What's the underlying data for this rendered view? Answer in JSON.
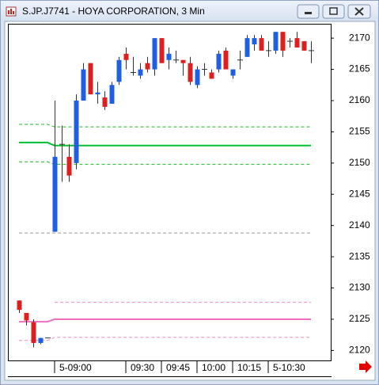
{
  "chart_data": {
    "type": "candlestick",
    "title": "S.JP.J7741 - HOYA CORPORATION, 3 Min",
    "categories": [
      null,
      null,
      null,
      null,
      null,
      "5-09:00",
      null,
      null,
      null,
      null,
      null,
      null,
      null,
      null,
      null,
      "09:30",
      null,
      null,
      null,
      null,
      "09:45",
      null,
      null,
      null,
      null,
      "10:00",
      null,
      null,
      null,
      null,
      "10:15",
      null,
      null,
      null,
      null,
      "5-10:30",
      null,
      null,
      null,
      null,
      null,
      null
    ],
    "open": [
      2128,
      2126,
      2124.5,
      2121.2,
      2122,
      2139,
      2153,
      2151,
      2150,
      2160,
      2166,
      2161,
      2160.5,
      2159.5,
      2163,
      2167.5,
      2164.5,
      2164,
      2166,
      2165,
      2170,
      2166.5,
      2166.5,
      2166.5,
      2166,
      2162.5,
      2165,
      2164.5,
      2165,
      2168,
      2164,
      2166.5,
      2167,
      2169,
      2170,
      2168,
      2168,
      2171,
      2169.5,
      2170,
      2169.5,
      2168
    ],
    "high": [
      2128,
      2126,
      2125,
      2122,
      2122,
      2160,
      2156,
      2153,
      2161,
      2166,
      2166,
      2163,
      2161.5,
      2163,
      2167,
      2168.5,
      2167,
      2166,
      2167,
      2170,
      2170,
      2168.5,
      2168,
      2166.5,
      2167,
      2165.5,
      2166,
      2165,
      2168,
      2168.5,
      2165,
      2168,
      2170.5,
      2170.5,
      2170.5,
      2169.5,
      2171,
      2171,
      2170,
      2171,
      2169.5,
      2169.5
    ],
    "low": [
      2126,
      2124,
      2120.5,
      2121,
      2122,
      2139,
      2147,
      2147,
      2149,
      2160,
      2161,
      2159.5,
      2158.5,
      2159.5,
      2162.5,
      2165,
      2164,
      2163.5,
      2164.5,
      2164,
      2166,
      2165,
      2166,
      2164,
      2162.5,
      2162,
      2164,
      2163.5,
      2164.5,
      2165,
      2163.5,
      2165,
      2167,
      2168,
      2168,
      2167,
      2167.5,
      2167,
      2168.5,
      2168.5,
      2168,
      2166
    ],
    "close": [
      2126.5,
      2124.8,
      2121.2,
      2122,
      2122,
      2151,
      2153,
      2148,
      2160,
      2165,
      2161,
      2161.3,
      2159,
      2162.5,
      2166.5,
      2166.5,
      2164.5,
      2165,
      2165,
      2170,
      2166,
      2167.5,
      2166.5,
      2166,
      2163,
      2165,
      2165,
      2163.5,
      2167.5,
      2165,
      2165,
      2166.5,
      2170,
      2170,
      2168,
      2168,
      2171,
      2168,
      2169.5,
      2168.5,
      2168,
      2168
    ],
    "up_color": "#1f5fe0",
    "down_color": "#dc1f1f",
    "wick_color": "#333333",
    "overlays": [
      {
        "color": "#22b822",
        "dashed": true,
        "values": [
          2156.2,
          2156.2,
          2156.2,
          2156.2,
          2156.2,
          2155.8,
          2155.8,
          2155.8,
          2155.8,
          2155.8,
          2155.8,
          2155.8,
          2155.8,
          2155.8,
          2155.8,
          2155.8,
          2155.8,
          2155.8,
          2155.8,
          2155.8,
          2155.8,
          2155.8,
          2155.8,
          2155.8,
          2155.8,
          2155.8,
          2155.8,
          2155.8,
          2155.8,
          2155.8,
          2155.8,
          2155.8,
          2155.8,
          2155.8,
          2155.8,
          2155.8,
          2155.8,
          2155.8,
          2155.8,
          2155.8,
          2155.8,
          2155.8
        ]
      },
      {
        "color": "#00c030",
        "dashed": false,
        "values": [
          2153.3,
          2153.3,
          2153.3,
          2153.3,
          2153.3,
          2152.8,
          2152.8,
          2152.8,
          2152.8,
          2152.8,
          2152.8,
          2152.8,
          2152.8,
          2152.8,
          2152.8,
          2152.8,
          2152.8,
          2152.8,
          2152.8,
          2152.8,
          2152.8,
          2152.8,
          2152.8,
          2152.8,
          2152.8,
          2152.8,
          2152.8,
          2152.8,
          2152.8,
          2152.8,
          2152.8,
          2152.8,
          2152.8,
          2152.8,
          2152.8,
          2152.8,
          2152.8,
          2152.8,
          2152.8,
          2152.8,
          2152.8,
          2152.8
        ]
      },
      {
        "color": "#22b822",
        "dashed": true,
        "values": [
          2150.2,
          2150.2,
          2150.2,
          2150.2,
          2150.2,
          2149.8,
          2149.8,
          2149.8,
          2149.8,
          2149.8,
          2149.8,
          2149.8,
          2149.8,
          2149.8,
          2149.8,
          2149.8,
          2149.8,
          2149.8,
          2149.8,
          2149.8,
          2149.8,
          2149.8,
          2149.8,
          2149.8,
          2149.8,
          2149.8,
          2149.8,
          2149.8,
          2149.8,
          2149.8,
          2149.8,
          2149.8,
          2149.8,
          2149.8,
          2149.8,
          2149.8,
          2149.8,
          2149.8,
          2149.8,
          2149.8,
          2149.8,
          2149.8
        ]
      },
      {
        "color": "#999999",
        "dashed": true,
        "values": [
          2138.8,
          2138.8,
          2138.8,
          2138.8,
          2138.8,
          2138.8,
          2138.8,
          2138.8,
          2138.8,
          2138.8,
          2138.8,
          2138.8,
          2138.8,
          2138.8,
          2138.8,
          2138.8,
          2138.8,
          2138.8,
          2138.8,
          2138.8,
          2138.8,
          2138.8,
          2138.8,
          2138.8,
          2138.8,
          2138.8,
          2138.8,
          2138.8,
          2138.8,
          2138.8,
          2138.8,
          2138.8,
          2138.8,
          2138.8,
          2138.8,
          2138.8,
          2138.8,
          2138.8,
          2138.8,
          2138.8,
          2138.8,
          2138.8
        ]
      },
      {
        "color": "#f08ac8",
        "dashed": true,
        "values": [
          null,
          null,
          null,
          null,
          null,
          2127.7,
          2127.7,
          2127.7,
          2127.7,
          2127.7,
          2127.7,
          2127.7,
          2127.7,
          2127.7,
          2127.7,
          2127.7,
          2127.7,
          2127.7,
          2127.7,
          2127.7,
          2127.7,
          2127.7,
          2127.7,
          2127.7,
          2127.7,
          2127.7,
          2127.7,
          2127.7,
          2127.7,
          2127.7,
          2127.7,
          2127.7,
          2127.7,
          2127.7,
          2127.7,
          2127.7,
          2127.7,
          2127.7,
          2127.7,
          2127.7,
          2127.7,
          2127.7
        ]
      },
      {
        "color": "#f070c0",
        "dashed": false,
        "values": [
          2124.6,
          2124.6,
          2124.6,
          2124.6,
          2124.6,
          2125,
          2125,
          2125,
          2125,
          2125,
          2125,
          2125,
          2125,
          2125,
          2125,
          2125,
          2125,
          2125,
          2125,
          2125,
          2125,
          2125,
          2125,
          2125,
          2125,
          2125,
          2125,
          2125,
          2125,
          2125,
          2125,
          2125,
          2125,
          2125,
          2125,
          2125,
          2125,
          2125,
          2125,
          2125,
          2125,
          2125
        ]
      },
      {
        "color": "#f08ac8",
        "dashed": true,
        "values": [
          2121.6,
          2121.6,
          2121.6,
          2121.6,
          2121.6,
          2122.1,
          2122.1,
          2122.1,
          2122.1,
          2122.1,
          2122.1,
          2122.1,
          2122.1,
          2122.1,
          2122.1,
          2122.1,
          2122.1,
          2122.1,
          2122.1,
          2122.1,
          2122.1,
          2122.1,
          2122.1,
          2122.1,
          2122.1,
          2122.1,
          2122.1,
          2122.1,
          2122.1,
          2122.1,
          2122.1,
          2122.1,
          2122.1,
          2122.1,
          2122.1,
          2122.1,
          2122.1,
          2122.1,
          2122.1,
          2122.1,
          2122.1,
          2122.1
        ]
      }
    ],
    "ylim": [
      2118.4,
      2172.3
    ],
    "yticks": [
      2120,
      2125,
      2130,
      2135,
      2140,
      2145,
      2150,
      2155,
      2160,
      2165,
      2170
    ],
    "y_axis_side": "right",
    "grid": false
  }
}
